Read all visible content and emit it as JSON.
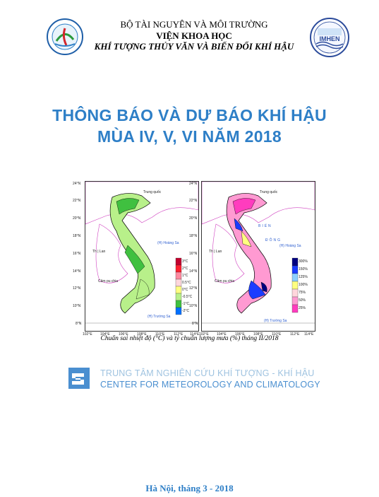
{
  "header": {
    "ministry": "BỘ TÀI NGUYÊN VÀ MÔI TRƯỜNG",
    "institute": "VIỆN KHOA HỌC",
    "institute_sub": "KHÍ TƯỢNG THỦY VĂN VÀ BIẾN ĐỔI KHÍ HẬU",
    "right_logo_text": "IMHEN"
  },
  "title": {
    "line1": "THÔNG BÁO VÀ DỰ BÁO KHÍ HẬU",
    "line2": "MÙA IV, V, VI NĂM 2018"
  },
  "maps": {
    "lat_labels": [
      "24°N",
      "22°N",
      "20°N",
      "18°N",
      "16°N",
      "14°N",
      "12°N",
      "10°N",
      "8°N"
    ],
    "lon_labels": [
      "102°E",
      "104°E",
      "106°E",
      "108°E",
      "110°E",
      "112°E",
      "114°E"
    ],
    "place_labels": {
      "china": "Trung quốc",
      "laos": "Th | Lan",
      "cambodia": "Câm pu chia",
      "east_sea_1": "BIỂN",
      "east_sea_2": "ĐÔNG",
      "hoang_sa": "(H) Hoàng Sa",
      "truong_sa": "(H) Trường Sa"
    },
    "temp_legend": [
      "3°C",
      "2°C",
      "1°C",
      "0.5°C",
      "0°C",
      "-0.5°C",
      "-1°C",
      "-2°C"
    ],
    "temp_colors": [
      "#c2002e",
      "#ff2030",
      "#ff8aa0",
      "#ffd6dc",
      "#ffff80",
      "#b8f08a",
      "#40c040",
      "#0070ff"
    ],
    "rain_legend": [
      "300%",
      "150%",
      "125%",
      "100%",
      "75%",
      "50%",
      "25%"
    ],
    "rain_colors": [
      "#000080",
      "#1a3cff",
      "#8cd0ff",
      "#ffff80",
      "#ffd6dc",
      "#ff9ad2",
      "#ff3cbe"
    ],
    "caption": "Chuẩn sai nhiệt độ (°C) và tỷ chuẩn lượng mưa (%) tháng II/2018"
  },
  "center": {
    "name_vi": "TRUNG TÂM NGHIÊN CỨU KHÍ TƯỢNG - KHÍ HẬU",
    "name_en": "CENTER FOR METEOROLOGY AND CLIMATOLOGY"
  },
  "footer": {
    "place_date": "Hà Nội, tháng 3 - 2018"
  }
}
